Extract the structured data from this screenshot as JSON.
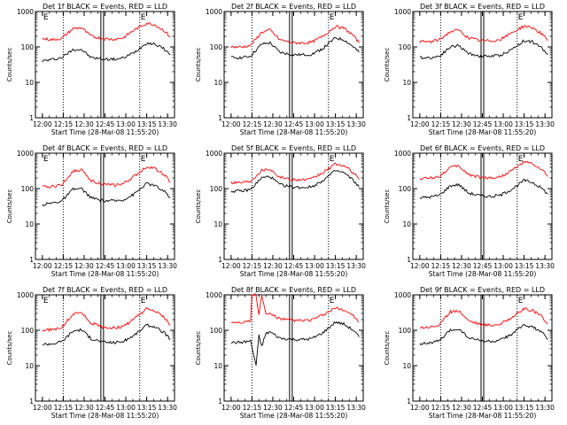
{
  "figure": {
    "xlabel": "Start Time (28-Mar-08 11:55:20)",
    "ylabel": "Counts/sec",
    "x_ticks": [
      "12:00",
      "12:15",
      "12:30",
      "12:45",
      "13:00",
      "13:15",
      "13:30"
    ],
    "y_ticks": [
      "1",
      "10",
      "100",
      "1000"
    ]
  },
  "colors": {
    "events": "#000000",
    "lld": "#ff0000",
    "axes": "#000000",
    "background": "#ffffff"
  },
  "chart_data": [
    {
      "type": "line",
      "title": "Det 1f BLACK = Events, RED = LLD",
      "xlabel": "Start Time (28-Mar-08 11:55:20)",
      "ylabel": "Counts/sec",
      "x_unit": "minutes after 12:00",
      "ylim": [
        1,
        1000
      ],
      "y_scale": "log",
      "x_range": [
        "12:00",
        "13:35"
      ],
      "series": [
        {
          "name": "Events",
          "color": "#000000",
          "x": [
            0,
            8,
            14,
            22,
            28,
            35,
            44,
            52,
            58,
            66,
            75,
            81,
            88,
            92
          ],
          "y": [
            40,
            45,
            50,
            85,
            85,
            50,
            45,
            45,
            48,
            70,
            130,
            120,
            85,
            60
          ]
        },
        {
          "name": "LLD",
          "color": "#ff0000",
          "x": [
            0,
            8,
            14,
            22,
            28,
            35,
            44,
            52,
            58,
            66,
            75,
            81,
            88,
            92
          ],
          "y": [
            170,
            160,
            175,
            330,
            350,
            200,
            170,
            165,
            180,
            300,
            470,
            420,
            280,
            190
          ]
        }
      ],
      "markers": {
        "dotted_lines": [
          "12:15",
          "13:10"
        ],
        "solid_bands": [
          "12:43"
        ],
        "E_labels": [
          "12:00",
          "13:10"
        ]
      }
    },
    {
      "type": "line",
      "title": "Det 2f BLACK = Events, RED = LLD",
      "xlabel": "Start Time (28-Mar-08 11:55:20)",
      "ylabel": "Counts/sec",
      "x_unit": "minutes after 12:00",
      "ylim": [
        1,
        1000
      ],
      "y_scale": "log",
      "x_range": [
        "12:00",
        "13:35"
      ],
      "series": [
        {
          "name": "Events",
          "color": "#000000",
          "x": [
            0,
            8,
            14,
            22,
            28,
            35,
            44,
            52,
            58,
            66,
            75,
            81,
            88,
            92
          ],
          "y": [
            50,
            50,
            55,
            120,
            130,
            70,
            60,
            60,
            62,
            90,
            180,
            160,
            100,
            70
          ]
        },
        {
          "name": "LLD",
          "color": "#ff0000",
          "x": [
            0,
            8,
            14,
            22,
            28,
            35,
            44,
            52,
            58,
            66,
            75,
            81,
            88,
            92
          ],
          "y": [
            100,
            100,
            110,
            260,
            300,
            160,
            130,
            130,
            135,
            200,
            380,
            340,
            210,
            130
          ]
        }
      ],
      "markers": {
        "dotted_lines": [
          "12:15",
          "13:10"
        ],
        "solid_bands": [
          "12:43"
        ],
        "E_labels": [
          "13:10"
        ]
      }
    },
    {
      "type": "line",
      "title": "Det 3f BLACK = Events, RED = LLD",
      "xlabel": "Start Time (28-Mar-08 11:55:20)",
      "ylabel": "Counts/sec",
      "x_unit": "minutes after 12:00",
      "ylim": [
        1,
        1000
      ],
      "y_scale": "log",
      "x_range": [
        "12:00",
        "13:35"
      ],
      "series": [
        {
          "name": "Events",
          "color": "#000000",
          "x": [
            0,
            8,
            14,
            22,
            28,
            35,
            44,
            52,
            58,
            66,
            75,
            81,
            88,
            92
          ],
          "y": [
            50,
            50,
            55,
            100,
            110,
            65,
            55,
            55,
            58,
            85,
            150,
            140,
            90,
            60
          ]
        },
        {
          "name": "LLD",
          "color": "#ff0000",
          "x": [
            0,
            8,
            14,
            22,
            28,
            35,
            44,
            52,
            58,
            66,
            75,
            81,
            88,
            92
          ],
          "y": [
            140,
            140,
            160,
            270,
            300,
            180,
            150,
            150,
            160,
            250,
            390,
            350,
            230,
            150
          ]
        }
      ],
      "markers": {
        "dotted_lines": [
          "12:15",
          "13:10"
        ],
        "solid_bands": [
          "12:45"
        ],
        "E_labels": [
          "13:10"
        ]
      }
    },
    {
      "type": "line",
      "title": "Det 4f BLACK = Events, RED = LLD",
      "xlabel": "Start Time (28-Mar-08 11:55:20)",
      "ylabel": "Counts/sec",
      "x_unit": "minutes after 12:00",
      "ylim": [
        1,
        1000
      ],
      "y_scale": "log",
      "x_range": [
        "12:00",
        "13:35"
      ],
      "series": [
        {
          "name": "Events",
          "color": "#000000",
          "x": [
            0,
            8,
            14,
            22,
            28,
            35,
            44,
            52,
            58,
            66,
            75,
            81,
            88,
            92
          ],
          "y": [
            35,
            40,
            45,
            95,
            100,
            55,
            45,
            45,
            48,
            70,
            140,
            120,
            80,
            55
          ]
        },
        {
          "name": "LLD",
          "color": "#ff0000",
          "x": [
            0,
            8,
            14,
            22,
            28,
            35,
            44,
            52,
            58,
            66,
            75,
            81,
            88,
            92
          ],
          "y": [
            110,
            115,
            130,
            310,
            340,
            170,
            130,
            125,
            135,
            220,
            420,
            370,
            240,
            150
          ]
        }
      ],
      "markers": {
        "dotted_lines": [
          "12:15",
          "13:10"
        ],
        "solid_bands": [
          "12:43"
        ],
        "E_labels": [
          "12:00",
          "13:10"
        ]
      }
    },
    {
      "type": "line",
      "title": "Det 5f BLACK = Events, RED = LLD",
      "xlabel": "Start Time (28-Mar-08 11:55:20)",
      "ylabel": "Counts/sec",
      "x_unit": "minutes after 12:00",
      "ylim": [
        1,
        1000
      ],
      "y_scale": "log",
      "x_range": [
        "12:00",
        "13:35"
      ],
      "series": [
        {
          "name": "Events",
          "color": "#000000",
          "x": [
            0,
            8,
            14,
            22,
            28,
            35,
            44,
            52,
            58,
            66,
            75,
            81,
            88,
            92
          ],
          "y": [
            85,
            85,
            95,
            200,
            220,
            130,
            110,
            108,
            112,
            170,
            320,
            280,
            170,
            110
          ]
        },
        {
          "name": "LLD",
          "color": "#ff0000",
          "x": [
            0,
            8,
            14,
            22,
            28,
            35,
            44,
            52,
            58,
            66,
            75,
            81,
            88,
            92
          ],
          "y": [
            150,
            150,
            165,
            330,
            360,
            210,
            180,
            178,
            185,
            280,
            500,
            440,
            280,
            180
          ]
        }
      ],
      "markers": {
        "dotted_lines": [
          "12:15",
          "13:10"
        ],
        "solid_bands": [
          "12:43"
        ],
        "E_labels": [
          "13:10"
        ]
      }
    },
    {
      "type": "line",
      "title": "Det 6f BLACK = Events, RED = LLD",
      "xlabel": "Start Time (28-Mar-08 11:55:20)",
      "ylabel": "Counts/sec",
      "x_unit": "minutes after 12:00",
      "ylim": [
        1,
        1000
      ],
      "y_scale": "log",
      "x_range": [
        "12:00",
        "13:35"
      ],
      "series": [
        {
          "name": "Events",
          "color": "#000000",
          "x": [
            0,
            8,
            14,
            22,
            28,
            35,
            44,
            52,
            58,
            66,
            75,
            81,
            88,
            92
          ],
          "y": [
            55,
            58,
            65,
            120,
            130,
            75,
            62,
            60,
            65,
            95,
            170,
            150,
            100,
            70
          ]
        },
        {
          "name": "LLD",
          "color": "#ff0000",
          "x": [
            0,
            8,
            14,
            22,
            28,
            35,
            44,
            52,
            58,
            66,
            75,
            81,
            88,
            92
          ],
          "y": [
            190,
            200,
            220,
            400,
            430,
            250,
            205,
            200,
            215,
            320,
            560,
            500,
            330,
            220
          ]
        }
      ],
      "markers": {
        "dotted_lines": [
          "12:15",
          "13:10"
        ],
        "solid_bands": [
          "12:45"
        ],
        "E_labels": [
          "13:10"
        ]
      }
    },
    {
      "type": "line",
      "title": "Det 7f BLACK = Events, RED = LLD",
      "xlabel": "Start Time (28-Mar-08 11:55:20)",
      "ylabel": "Counts/sec",
      "x_unit": "minutes after 12:00",
      "ylim": [
        1,
        1000
      ],
      "y_scale": "log",
      "x_range": [
        "12:00",
        "13:35"
      ],
      "series": [
        {
          "name": "Events",
          "color": "#000000",
          "x": [
            0,
            8,
            14,
            22,
            28,
            35,
            44,
            52,
            58,
            66,
            75,
            81,
            88,
            92
          ],
          "y": [
            40,
            42,
            48,
            95,
            105,
            58,
            46,
            45,
            48,
            72,
            140,
            125,
            82,
            55
          ]
        },
        {
          "name": "LLD",
          "color": "#ff0000",
          "x": [
            0,
            8,
            14,
            22,
            28,
            35,
            44,
            52,
            58,
            66,
            75,
            81,
            88,
            92
          ],
          "y": [
            100,
            105,
            120,
            290,
            320,
            160,
            120,
            118,
            125,
            210,
            400,
            350,
            220,
            140
          ]
        }
      ],
      "markers": {
        "dotted_lines": [
          "12:15",
          "13:10"
        ],
        "solid_bands": [
          "12:43"
        ],
        "E_labels": [
          "12:00",
          "13:10"
        ]
      }
    },
    {
      "type": "line",
      "title": "Det 8f BLACK = Events, RED = LLD",
      "xlabel": "Start Time (28-Mar-08 11:55:20)",
      "ylabel": "Counts/sec",
      "x_unit": "minutes after 12:00",
      "ylim": [
        1,
        1000
      ],
      "y_scale": "log",
      "x_range": [
        "12:00",
        "13:35"
      ],
      "series": [
        {
          "name": "Events",
          "color": "#000000",
          "x": [
            0,
            8,
            14,
            18,
            20,
            22,
            25,
            28,
            35,
            44,
            52,
            58,
            66,
            75,
            81,
            88,
            92
          ],
          "y": [
            45,
            46,
            50,
            10,
            70,
            35,
            80,
            90,
            60,
            55,
            55,
            58,
            85,
            170,
            150,
            100,
            65
          ]
        },
        {
          "name": "LLD",
          "color": "#ff0000",
          "x": [
            0,
            8,
            14,
            15,
            18,
            20,
            22,
            25,
            28,
            35,
            44,
            52,
            58,
            66,
            75,
            81,
            88,
            92
          ],
          "y": [
            170,
            170,
            185,
            1000,
            1000,
            260,
            1000,
            280,
            300,
            210,
            190,
            188,
            195,
            270,
            420,
            380,
            260,
            170
          ]
        }
      ],
      "markers": {
        "dotted_lines": [
          "12:15",
          "13:10"
        ],
        "solid_bands": [
          "12:43"
        ],
        "E_labels": [
          "13:10"
        ]
      }
    },
    {
      "type": "line",
      "title": "Det 9f BLACK = Events, RED = LLD",
      "xlabel": "Start Time (28-Mar-08 11:55:20)",
      "ylabel": "Counts/sec",
      "x_unit": "minutes after 12:00",
      "ylim": [
        1,
        1000
      ],
      "y_scale": "log",
      "x_range": [
        "12:00",
        "13:35"
      ],
      "series": [
        {
          "name": "Events",
          "color": "#000000",
          "x": [
            0,
            8,
            14,
            22,
            28,
            35,
            44,
            52,
            58,
            66,
            75,
            81,
            88,
            92
          ],
          "y": [
            42,
            44,
            50,
            100,
            110,
            62,
            50,
            48,
            52,
            78,
            140,
            125,
            85,
            55
          ]
        },
        {
          "name": "LLD",
          "color": "#ff0000",
          "x": [
            0,
            8,
            14,
            22,
            28,
            35,
            44,
            52,
            58,
            66,
            75,
            81,
            88,
            92
          ],
          "y": [
            120,
            125,
            140,
            330,
            360,
            190,
            145,
            140,
            150,
            230,
            400,
            360,
            240,
            150
          ]
        }
      ],
      "markers": {
        "dotted_lines": [
          "12:15",
          "13:10"
        ],
        "solid_bands": [
          "12:45"
        ],
        "E_labels": [
          "13:10"
        ]
      }
    }
  ]
}
